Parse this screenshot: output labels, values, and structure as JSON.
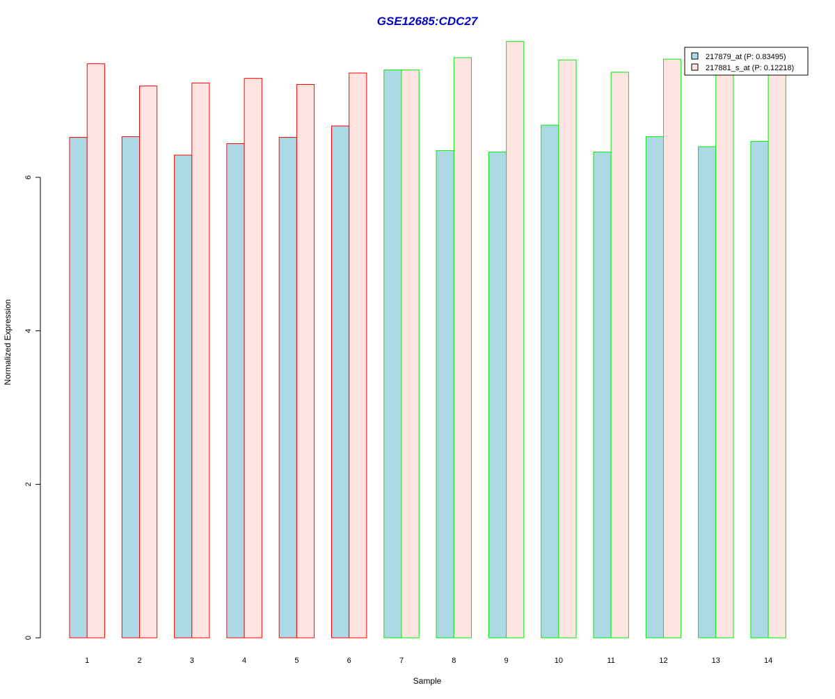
{
  "chart_data": {
    "type": "bar",
    "title": "GSE12685:CDC27",
    "xlabel": "Sample",
    "ylabel": "Normalized Expression",
    "categories": [
      "1",
      "2",
      "3",
      "4",
      "5",
      "6",
      "7",
      "8",
      "9",
      "10",
      "11",
      "12",
      "13",
      "14"
    ],
    "yticks": [
      "0",
      "2",
      "4",
      "6"
    ],
    "ylim": [
      0,
      7.8
    ],
    "grid": false,
    "legend_position": "top-right",
    "series": [
      {
        "name": "217879_at (P: 0.83495)",
        "fill": "#add8e6",
        "values": [
          6.52,
          6.53,
          6.29,
          6.44,
          6.52,
          6.67,
          7.4,
          6.35,
          6.33,
          6.68,
          6.33,
          6.53,
          6.4,
          6.47
        ]
      },
      {
        "name": "217881_s_at (P: 0.12218)",
        "fill": "#ffe4e1",
        "values": [
          7.48,
          7.19,
          7.23,
          7.29,
          7.21,
          7.36,
          7.4,
          7.56,
          7.77,
          7.53,
          7.37,
          7.54,
          7.34,
          7.4
        ]
      }
    ],
    "group_border_colors": [
      "#ff0000",
      "#ff0000",
      "#ff0000",
      "#ff0000",
      "#ff0000",
      "#ff0000",
      "#00ee00",
      "#00ee00",
      "#00ee00",
      "#00ee00",
      "#00ee00",
      "#00ee00",
      "#00ee00",
      "#00ee00"
    ],
    "title_color": "#0000cc"
  }
}
